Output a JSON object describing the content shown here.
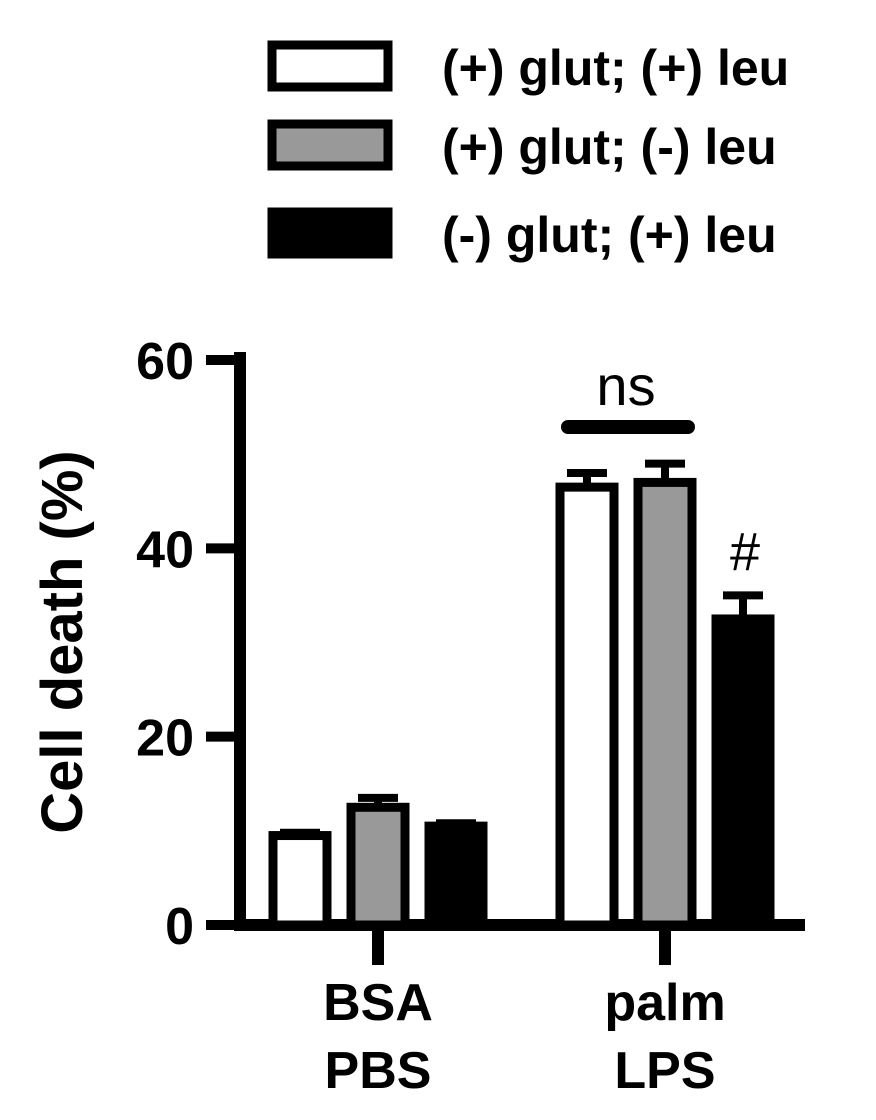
{
  "chart_data": {
    "type": "bar",
    "ylabel": "Cell death (%)",
    "ylim": [
      0,
      60
    ],
    "yticks": [
      0,
      20,
      40,
      60
    ],
    "categories": [
      {
        "line1": "BSA",
        "line2": "PBS"
      },
      {
        "line1": "palm",
        "line2": "LPS"
      }
    ],
    "series": [
      {
        "name": "(+) glut; (+) leu",
        "fill": "#ffffff",
        "values": [
          9.5,
          46.5
        ],
        "errors": [
          0.3,
          1.5
        ]
      },
      {
        "name": "(+) glut; (-) leu",
        "fill": "#999999",
        "values": [
          12.5,
          47.0
        ],
        "errors": [
          1.0,
          2.0
        ]
      },
      {
        "name": "(-) glut; (+) leu",
        "fill": "#000000",
        "values": [
          10.5,
          32.5
        ],
        "errors": [
          0.3,
          2.5
        ]
      }
    ],
    "legend_position": "top",
    "annotations": [
      {
        "text": "ns",
        "category": 1,
        "from_series": 0,
        "to_series": 1,
        "bracket": true
      },
      {
        "text": "#",
        "category": 1,
        "series": 2
      }
    ],
    "grid": false
  }
}
